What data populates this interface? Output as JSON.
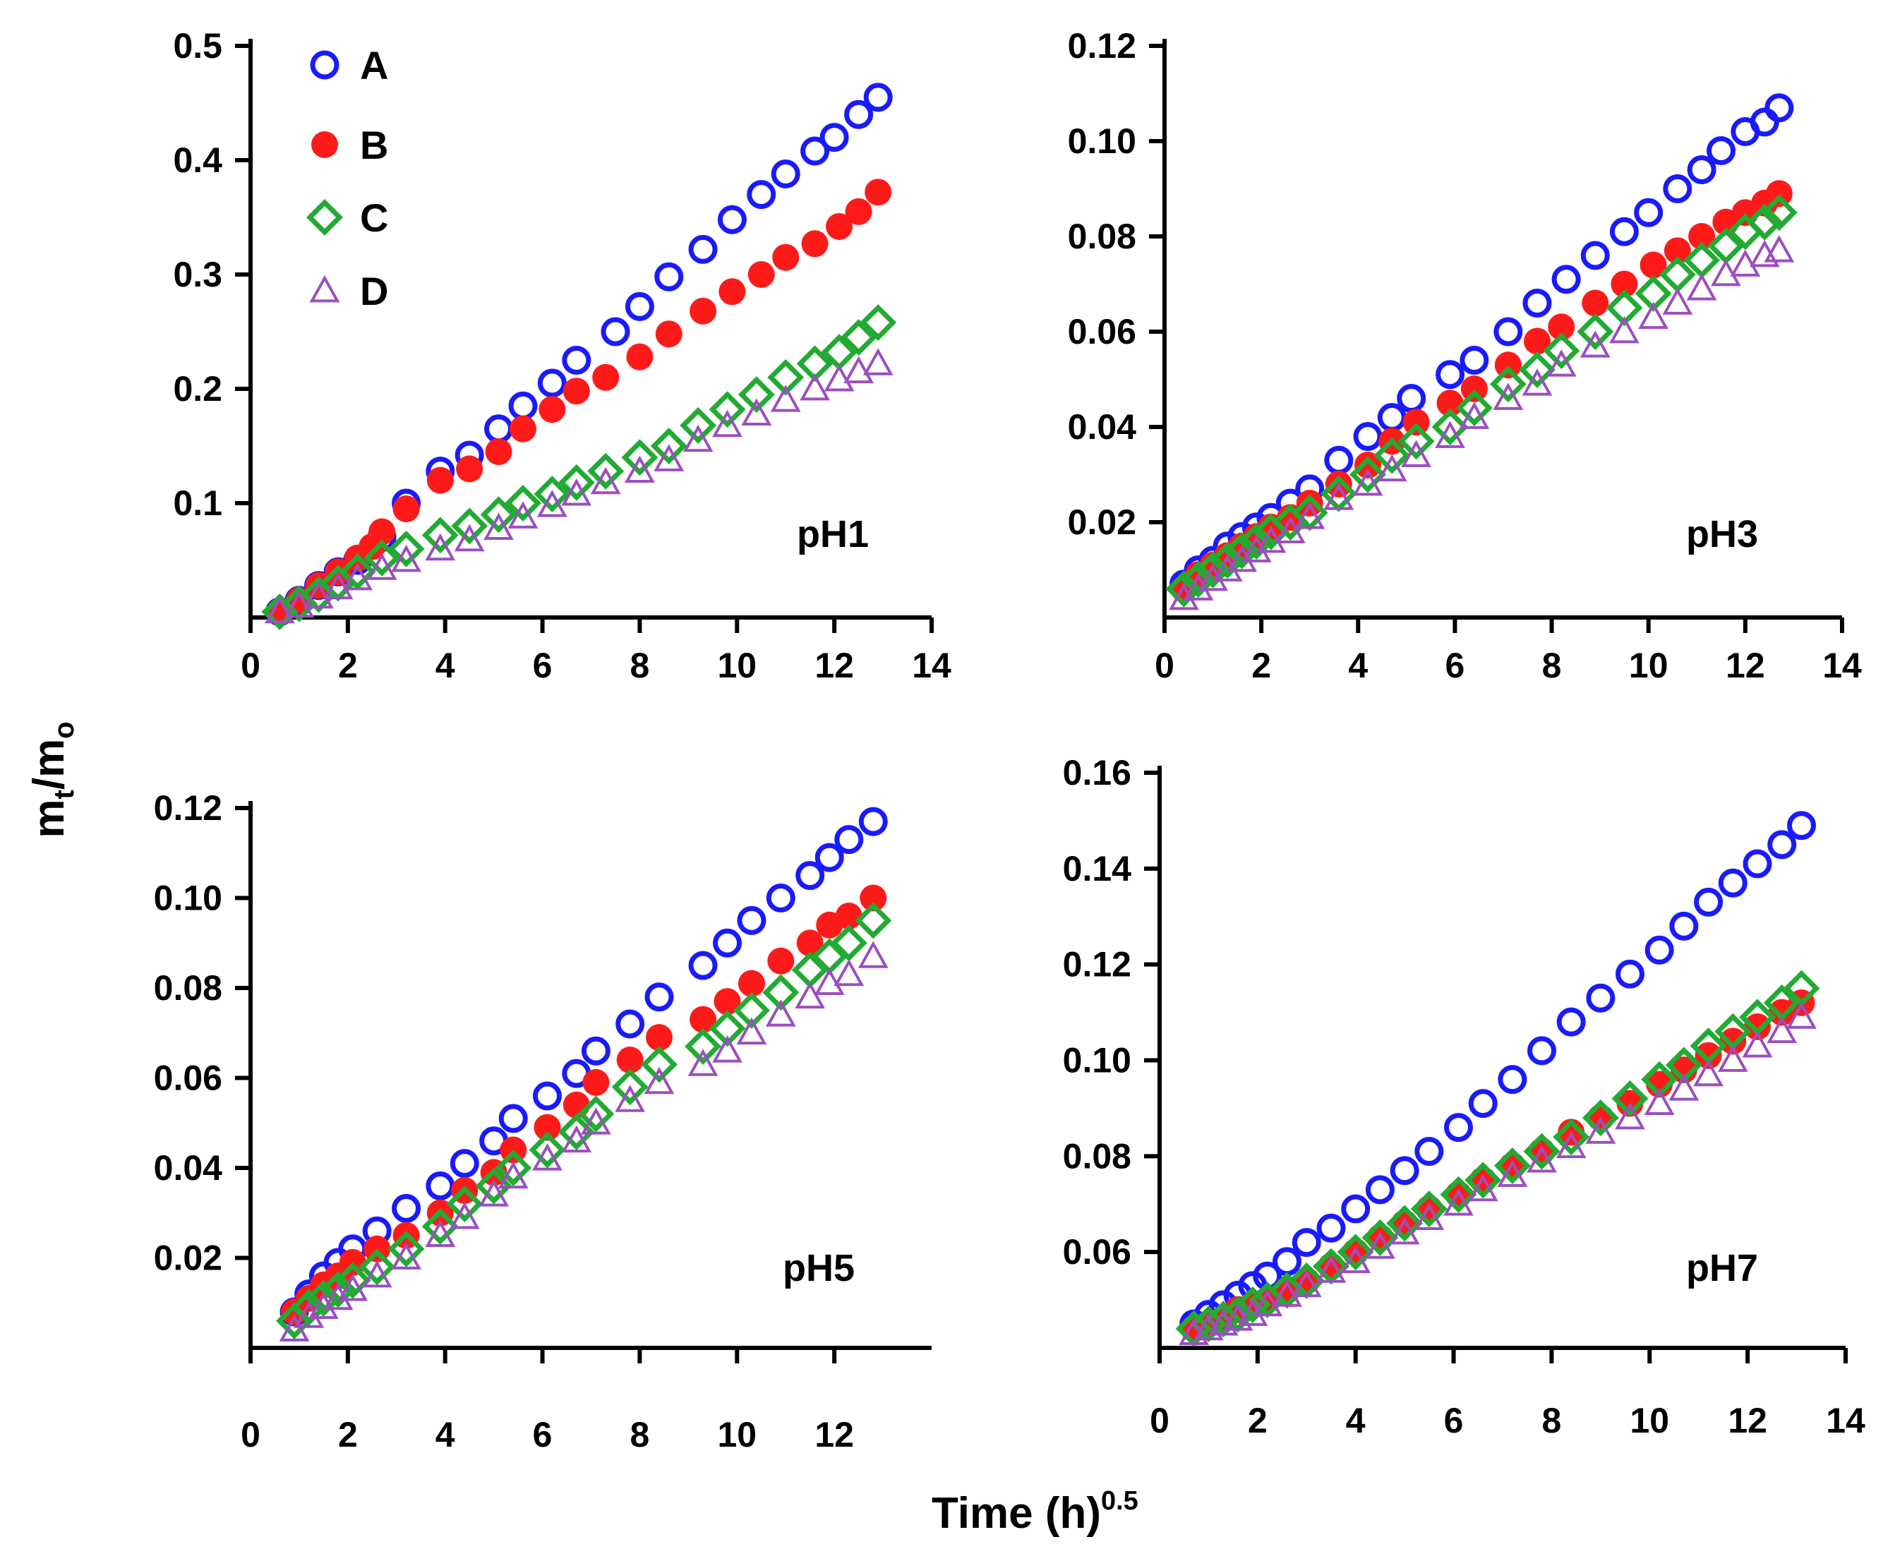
{
  "figure": {
    "ylabel_main": "m",
    "ylabel_sub1": "t",
    "ylabel_slash": "/m",
    "ylabel_sub2": "o",
    "xlabel_main": "Time (h)",
    "xlabel_sup": "0.5"
  },
  "legend": [
    {
      "label": "A",
      "marker": "open-circle",
      "color": "#1a1aff"
    },
    {
      "label": "B",
      "marker": "filled-circle",
      "color": "#ff1a1a"
    },
    {
      "label": "C",
      "marker": "open-diamond",
      "color": "#22aa33"
    },
    {
      "label": "D",
      "marker": "open-triangle",
      "color": "#9b4fbf"
    }
  ],
  "chart_data": [
    {
      "type": "scatter",
      "title": "pH1",
      "xlim": [
        0,
        14
      ],
      "ylim": [
        0,
        0.5
      ],
      "xticks": [
        "0",
        "2",
        "4",
        "6",
        "8",
        "10",
        "12",
        "14"
      ],
      "yticks": [
        "0.1",
        "0.2",
        "0.3",
        "0.4",
        "0.5"
      ],
      "series": [
        {
          "name": "A",
          "x": [
            0.6,
            1,
            1.4,
            1.8,
            2.2,
            2.7,
            3.2,
            3.9,
            4.5,
            5.1,
            5.6,
            6.2,
            6.7,
            7.5,
            8.0,
            8.6,
            9.3,
            9.9,
            10.5,
            11.0,
            11.6,
            12.0,
            12.5,
            12.9
          ],
          "y": [
            0.005,
            0.015,
            0.028,
            0.04,
            0.05,
            0.07,
            0.1,
            0.128,
            0.142,
            0.165,
            0.185,
            0.205,
            0.225,
            0.25,
            0.272,
            0.298,
            0.322,
            0.348,
            0.37,
            0.388,
            0.408,
            0.42,
            0.44,
            0.455
          ]
        },
        {
          "name": "B",
          "x": [
            0.6,
            1,
            1.4,
            1.8,
            2.2,
            2.5,
            2.7,
            3.2,
            3.9,
            4.5,
            5.1,
            5.6,
            6.2,
            6.7,
            7.3,
            8.0,
            8.6,
            9.3,
            9.9,
            10.5,
            11.0,
            11.6,
            12.1,
            12.5,
            12.9
          ],
          "y": [
            0.005,
            0.015,
            0.028,
            0.04,
            0.052,
            0.062,
            0.075,
            0.095,
            0.12,
            0.13,
            0.145,
            0.165,
            0.182,
            0.198,
            0.21,
            0.228,
            0.248,
            0.268,
            0.285,
            0.3,
            0.315,
            0.327,
            0.342,
            0.355,
            0.372
          ]
        },
        {
          "name": "C",
          "x": [
            0.6,
            1,
            1.4,
            1.8,
            2.2,
            2.7,
            3.2,
            3.9,
            4.5,
            5.1,
            5.6,
            6.2,
            6.7,
            7.3,
            8.0,
            8.6,
            9.2,
            9.8,
            10.4,
            11.0,
            11.6,
            12.1,
            12.5,
            12.9
          ],
          "y": [
            0.005,
            0.012,
            0.02,
            0.03,
            0.04,
            0.052,
            0.06,
            0.072,
            0.08,
            0.09,
            0.1,
            0.108,
            0.118,
            0.128,
            0.14,
            0.15,
            0.168,
            0.182,
            0.195,
            0.21,
            0.222,
            0.232,
            0.245,
            0.258
          ]
        },
        {
          "name": "D",
          "x": [
            0.6,
            1,
            1.4,
            1.8,
            2.2,
            2.7,
            3.2,
            3.9,
            4.5,
            5.1,
            5.6,
            6.2,
            6.7,
            7.3,
            8.0,
            8.6,
            9.2,
            9.8,
            10.4,
            11.0,
            11.6,
            12.1,
            12.5,
            12.9
          ],
          "y": [
            0.005,
            0.01,
            0.018,
            0.026,
            0.034,
            0.043,
            0.05,
            0.06,
            0.068,
            0.078,
            0.088,
            0.098,
            0.108,
            0.118,
            0.128,
            0.138,
            0.155,
            0.168,
            0.178,
            0.19,
            0.2,
            0.208,
            0.215,
            0.222
          ]
        }
      ]
    },
    {
      "type": "scatter",
      "title": "pH3",
      "xlim": [
        0,
        14
      ],
      "ylim": [
        0,
        0.12
      ],
      "xticks": [
        "0",
        "2",
        "4",
        "6",
        "8",
        "10",
        "12",
        "14"
      ],
      "yticks": [
        "0.02",
        "0.04",
        "0.06",
        "0.08",
        "0.10",
        "0.12"
      ],
      "series": [
        {
          "name": "A",
          "x": [
            0.4,
            0.7,
            1.0,
            1.3,
            1.6,
            1.9,
            2.2,
            2.6,
            3.0,
            3.6,
            4.2,
            4.7,
            5.1,
            5.9,
            6.4,
            7.1,
            7.7,
            8.3,
            8.9,
            9.5,
            10.0,
            10.6,
            11.1,
            11.5,
            12.0,
            12.4,
            12.7
          ],
          "y": [
            0.007,
            0.01,
            0.012,
            0.015,
            0.017,
            0.019,
            0.021,
            0.024,
            0.027,
            0.033,
            0.038,
            0.042,
            0.046,
            0.051,
            0.054,
            0.06,
            0.066,
            0.071,
            0.076,
            0.081,
            0.085,
            0.09,
            0.094,
            0.098,
            0.102,
            0.104,
            0.107
          ]
        },
        {
          "name": "B",
          "x": [
            0.4,
            0.7,
            1.0,
            1.3,
            1.6,
            1.9,
            2.2,
            2.6,
            3.0,
            3.6,
            4.2,
            4.7,
            5.2,
            5.9,
            6.4,
            7.1,
            7.7,
            8.2,
            8.9,
            9.5,
            10.1,
            10.6,
            11.1,
            11.6,
            12.0,
            12.4,
            12.7
          ],
          "y": [
            0.006,
            0.009,
            0.011,
            0.013,
            0.015,
            0.017,
            0.019,
            0.021,
            0.024,
            0.028,
            0.032,
            0.037,
            0.041,
            0.045,
            0.048,
            0.053,
            0.058,
            0.061,
            0.066,
            0.07,
            0.074,
            0.077,
            0.08,
            0.083,
            0.085,
            0.087,
            0.089
          ]
        },
        {
          "name": "C",
          "x": [
            0.4,
            0.7,
            1.0,
            1.3,
            1.6,
            1.9,
            2.2,
            2.6,
            3.0,
            3.6,
            4.2,
            4.7,
            5.2,
            5.9,
            6.4,
            7.1,
            7.7,
            8.2,
            8.9,
            9.5,
            10.1,
            10.6,
            11.1,
            11.6,
            12.0,
            12.4,
            12.7
          ],
          "y": [
            0.006,
            0.008,
            0.01,
            0.012,
            0.014,
            0.016,
            0.018,
            0.02,
            0.022,
            0.026,
            0.03,
            0.034,
            0.037,
            0.04,
            0.044,
            0.049,
            0.052,
            0.056,
            0.06,
            0.065,
            0.068,
            0.072,
            0.075,
            0.078,
            0.081,
            0.083,
            0.085
          ]
        },
        {
          "name": "D",
          "x": [
            0.4,
            0.7,
            1.0,
            1.3,
            1.6,
            1.9,
            2.2,
            2.6,
            3.0,
            3.6,
            4.2,
            4.7,
            5.2,
            5.9,
            6.4,
            7.1,
            7.7,
            8.2,
            8.9,
            9.5,
            10.1,
            10.6,
            11.1,
            11.6,
            12.0,
            12.4,
            12.7
          ],
          "y": [
            0.004,
            0.006,
            0.008,
            0.01,
            0.012,
            0.014,
            0.016,
            0.018,
            0.021,
            0.025,
            0.028,
            0.031,
            0.034,
            0.038,
            0.042,
            0.046,
            0.049,
            0.053,
            0.057,
            0.06,
            0.063,
            0.066,
            0.069,
            0.072,
            0.074,
            0.076,
            0.077
          ]
        }
      ]
    },
    {
      "type": "scatter",
      "title": "pH5",
      "xlim": [
        0,
        14
      ],
      "ylim": [
        0,
        0.12
      ],
      "xticks": [
        "0",
        "2",
        "4",
        "6",
        "8",
        "10",
        "12"
      ],
      "yticks": [
        "0.02",
        "0.04",
        "0.06",
        "0.08",
        "0.10",
        "0.12"
      ],
      "series": [
        {
          "name": "A",
          "x": [
            0.9,
            1.2,
            1.5,
            1.8,
            2.1,
            2.6,
            3.2,
            3.9,
            4.4,
            5.0,
            5.4,
            6.1,
            6.7,
            7.1,
            7.8,
            8.4,
            9.3,
            9.8,
            10.3,
            10.9,
            11.5,
            11.9,
            12.3,
            12.8
          ],
          "y": [
            0.008,
            0.012,
            0.016,
            0.019,
            0.022,
            0.026,
            0.031,
            0.036,
            0.041,
            0.046,
            0.051,
            0.056,
            0.061,
            0.066,
            0.072,
            0.078,
            0.085,
            0.09,
            0.095,
            0.1,
            0.105,
            0.109,
            0.113,
            0.117
          ]
        },
        {
          "name": "B",
          "x": [
            0.9,
            1.2,
            1.5,
            1.8,
            2.1,
            2.6,
            3.2,
            3.9,
            4.4,
            5.0,
            5.4,
            6.1,
            6.7,
            7.1,
            7.8,
            8.4,
            9.3,
            9.8,
            10.3,
            10.9,
            11.5,
            11.9,
            12.3,
            12.8
          ],
          "y": [
            0.008,
            0.011,
            0.014,
            0.016,
            0.019,
            0.022,
            0.025,
            0.03,
            0.035,
            0.039,
            0.044,
            0.049,
            0.054,
            0.059,
            0.064,
            0.069,
            0.073,
            0.077,
            0.081,
            0.086,
            0.09,
            0.094,
            0.096,
            0.1
          ]
        },
        {
          "name": "C",
          "x": [
            0.9,
            1.2,
            1.5,
            1.8,
            2.1,
            2.6,
            3.2,
            3.9,
            4.4,
            5.0,
            5.4,
            6.1,
            6.7,
            7.1,
            7.8,
            8.4,
            9.3,
            9.8,
            10.3,
            10.9,
            11.5,
            11.9,
            12.3,
            12.8
          ],
          "y": [
            0.006,
            0.009,
            0.011,
            0.013,
            0.015,
            0.018,
            0.022,
            0.027,
            0.032,
            0.036,
            0.04,
            0.044,
            0.048,
            0.052,
            0.058,
            0.063,
            0.067,
            0.071,
            0.075,
            0.079,
            0.084,
            0.087,
            0.09,
            0.095
          ]
        },
        {
          "name": "D",
          "x": [
            0.9,
            1.2,
            1.5,
            1.8,
            2.1,
            2.6,
            3.2,
            3.9,
            4.4,
            5.0,
            5.4,
            6.1,
            6.7,
            7.1,
            7.8,
            8.4,
            9.3,
            9.8,
            10.3,
            10.9,
            11.5,
            11.9,
            12.3,
            12.8
          ],
          "y": [
            0.004,
            0.007,
            0.009,
            0.011,
            0.013,
            0.016,
            0.02,
            0.025,
            0.029,
            0.034,
            0.038,
            0.042,
            0.046,
            0.05,
            0.055,
            0.059,
            0.063,
            0.066,
            0.07,
            0.074,
            0.078,
            0.081,
            0.083,
            0.087
          ]
        }
      ]
    },
    {
      "type": "scatter",
      "title": "pH7",
      "xlim": [
        0,
        14
      ],
      "ylim": [
        0.04,
        0.16
      ],
      "xticks": [
        "0",
        "2",
        "4",
        "6",
        "8",
        "10",
        "12",
        "14"
      ],
      "yticks": [
        "0.06",
        "0.08",
        "0.10",
        "0.12",
        "0.14",
        "0.16"
      ],
      "series": [
        {
          "name": "A",
          "x": [
            0.7,
            1.0,
            1.3,
            1.6,
            1.9,
            2.2,
            2.6,
            3.0,
            3.5,
            4.0,
            4.5,
            5.0,
            5.5,
            6.1,
            6.6,
            7.2,
            7.8,
            8.4,
            9.0,
            9.6,
            10.2,
            10.7,
            11.2,
            11.7,
            12.2,
            12.7,
            13.1
          ],
          "y": [
            0.045,
            0.047,
            0.049,
            0.051,
            0.053,
            0.055,
            0.058,
            0.062,
            0.065,
            0.069,
            0.073,
            0.077,
            0.081,
            0.086,
            0.091,
            0.096,
            0.102,
            0.108,
            0.113,
            0.118,
            0.123,
            0.128,
            0.133,
            0.137,
            0.141,
            0.145,
            0.149
          ]
        },
        {
          "name": "B",
          "x": [
            0.7,
            1.0,
            1.3,
            1.6,
            1.9,
            2.2,
            2.6,
            3.0,
            3.5,
            4.0,
            4.5,
            5.0,
            5.5,
            6.1,
            6.6,
            7.2,
            7.8,
            8.4,
            9.0,
            9.6,
            10.2,
            10.7,
            11.2,
            11.7,
            12.2,
            12.7,
            13.1
          ],
          "y": [
            0.044,
            0.045,
            0.046,
            0.048,
            0.049,
            0.05,
            0.052,
            0.054,
            0.057,
            0.06,
            0.063,
            0.066,
            0.069,
            0.072,
            0.075,
            0.078,
            0.081,
            0.085,
            0.088,
            0.091,
            0.095,
            0.098,
            0.101,
            0.104,
            0.107,
            0.11,
            0.112
          ]
        },
        {
          "name": "C",
          "x": [
            0.7,
            1.0,
            1.3,
            1.6,
            1.9,
            2.2,
            2.6,
            3.0,
            3.5,
            4.0,
            4.5,
            5.0,
            5.5,
            6.1,
            6.6,
            7.2,
            7.8,
            8.4,
            9.0,
            9.6,
            10.2,
            10.7,
            11.2,
            11.7,
            12.2,
            12.7,
            13.1
          ],
          "y": [
            0.044,
            0.045,
            0.046,
            0.047,
            0.049,
            0.05,
            0.052,
            0.054,
            0.057,
            0.06,
            0.063,
            0.066,
            0.069,
            0.072,
            0.075,
            0.078,
            0.081,
            0.084,
            0.088,
            0.092,
            0.096,
            0.099,
            0.103,
            0.106,
            0.109,
            0.112,
            0.115
          ]
        },
        {
          "name": "D",
          "x": [
            0.7,
            1.0,
            1.3,
            1.6,
            1.9,
            2.2,
            2.6,
            3.0,
            3.5,
            4.0,
            4.5,
            5.0,
            5.5,
            6.1,
            6.6,
            7.2,
            7.8,
            8.4,
            9.0,
            9.6,
            10.2,
            10.7,
            11.2,
            11.7,
            12.2,
            12.7,
            13.1
          ],
          "y": [
            0.043,
            0.044,
            0.045,
            0.046,
            0.047,
            0.049,
            0.051,
            0.053,
            0.056,
            0.058,
            0.061,
            0.064,
            0.067,
            0.07,
            0.073,
            0.076,
            0.079,
            0.082,
            0.085,
            0.088,
            0.091,
            0.094,
            0.097,
            0.1,
            0.103,
            0.106,
            0.109
          ]
        }
      ]
    }
  ]
}
